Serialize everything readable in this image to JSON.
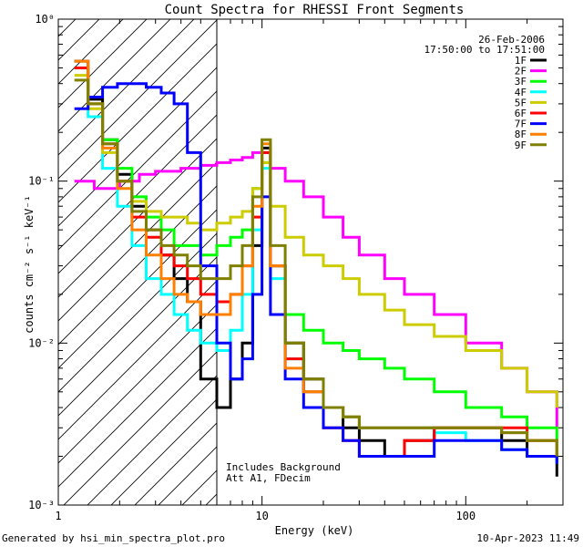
{
  "chart_data": {
    "type": "line",
    "title": "Count Spectra for RHESSI Front Segments",
    "xlabel": "Energy (keV)",
    "ylabel": "counts cm⁻² s⁻¹ keV⁻¹",
    "xscale": "log",
    "yscale": "log",
    "xlim": [
      1,
      300
    ],
    "ylim": [
      0.001,
      1
    ],
    "x_ticks": [
      {
        "value": 1,
        "label": "1"
      },
      {
        "value": 10,
        "label": "10"
      },
      {
        "value": 100,
        "label": "100"
      }
    ],
    "y_ticks": [
      {
        "value": 1,
        "label": "10⁰"
      },
      {
        "value": 0.1,
        "label": "10⁻¹"
      },
      {
        "value": 0.01,
        "label": "10⁻²"
      },
      {
        "value": 0.001,
        "label": "10⁻³"
      }
    ],
    "date": "26-Feb-2006",
    "time_range": "17:50:00 to 17:51:00",
    "hatched_region_end_kev": 6,
    "annotation_lines": [
      "Includes Background",
      "Att A1, FDecim"
    ],
    "legend_position": "top-right",
    "series": [
      {
        "name": "1F",
        "color": "#000000",
        "x": [
          1.2,
          1.4,
          1.65,
          1.95,
          2.3,
          2.7,
          3.2,
          3.7,
          4.3,
          5.0,
          6.0,
          7.0,
          8.0,
          9.0,
          10.0,
          11.0,
          13.0,
          16.0,
          20.0,
          25.0,
          30.0,
          40.0,
          50.0,
          70.0,
          100.0,
          150.0,
          200.0,
          280.0
        ],
        "values": [
          0.55,
          0.32,
          0.18,
          0.11,
          0.07,
          0.05,
          0.035,
          0.025,
          0.018,
          0.006,
          0.004,
          0.006,
          0.01,
          0.04,
          0.16,
          0.03,
          0.01,
          0.006,
          0.004,
          0.003,
          0.0025,
          0.002,
          0.0025,
          0.003,
          0.003,
          0.0025,
          0.002,
          0.0015
        ]
      },
      {
        "name": "2F",
        "color": "#ff00ff",
        "x": [
          1.2,
          1.5,
          2.0,
          2.5,
          3.0,
          4.0,
          5.0,
          6.0,
          7.0,
          8.0,
          9.0,
          10.0,
          11.0,
          13.0,
          16.0,
          20.0,
          25.0,
          30.0,
          40.0,
          50.0,
          70.0,
          100.0,
          150.0,
          200.0,
          280.0
        ],
        "values": [
          0.1,
          0.09,
          0.1,
          0.11,
          0.115,
          0.12,
          0.125,
          0.13,
          0.135,
          0.14,
          0.15,
          0.15,
          0.12,
          0.1,
          0.08,
          0.06,
          0.045,
          0.035,
          0.025,
          0.02,
          0.015,
          0.01,
          0.007,
          0.005,
          0.003
        ]
      },
      {
        "name": "3F",
        "color": "#00ff00",
        "x": [
          1.2,
          1.4,
          1.65,
          1.95,
          2.3,
          2.7,
          3.2,
          3.7,
          4.3,
          5.0,
          6.0,
          7.0,
          8.0,
          9.0,
          10.0,
          11.0,
          13.0,
          16.0,
          20.0,
          25.0,
          30.0,
          40.0,
          50.0,
          70.0,
          100.0,
          150.0,
          200.0,
          280.0
        ],
        "values": [
          0.5,
          0.3,
          0.18,
          0.12,
          0.08,
          0.06,
          0.05,
          0.04,
          0.04,
          0.035,
          0.04,
          0.045,
          0.05,
          0.09,
          0.13,
          0.03,
          0.015,
          0.012,
          0.01,
          0.009,
          0.008,
          0.007,
          0.006,
          0.005,
          0.004,
          0.0035,
          0.003,
          0.0025
        ]
      },
      {
        "name": "4F",
        "color": "#00ffff",
        "x": [
          1.2,
          1.4,
          1.65,
          1.95,
          2.3,
          2.7,
          3.2,
          3.7,
          4.3,
          5.0,
          6.0,
          7.0,
          8.0,
          9.0,
          10.0,
          11.0,
          13.0,
          16.0,
          20.0,
          25.0,
          30.0,
          40.0,
          50.0,
          70.0,
          100.0,
          150.0,
          200.0,
          280.0
        ],
        "values": [
          0.5,
          0.25,
          0.12,
          0.07,
          0.04,
          0.025,
          0.02,
          0.015,
          0.012,
          0.01,
          0.009,
          0.012,
          0.02,
          0.05,
          0.12,
          0.025,
          0.008,
          0.005,
          0.004,
          0.0035,
          0.003,
          0.003,
          0.003,
          0.0028,
          0.0025,
          0.0022,
          0.002,
          0.0018
        ]
      },
      {
        "name": "5F",
        "color": "#cccc00",
        "x": [
          1.2,
          1.4,
          1.65,
          1.95,
          2.3,
          2.7,
          3.2,
          3.7,
          4.3,
          5.0,
          6.0,
          7.0,
          8.0,
          9.0,
          10.0,
          11.0,
          13.0,
          16.0,
          20.0,
          25.0,
          30.0,
          40.0,
          50.0,
          70.0,
          100.0,
          150.0,
          200.0,
          280.0
        ],
        "values": [
          0.45,
          0.28,
          0.15,
          0.1,
          0.075,
          0.065,
          0.06,
          0.06,
          0.055,
          0.05,
          0.055,
          0.06,
          0.065,
          0.09,
          0.13,
          0.07,
          0.045,
          0.035,
          0.03,
          0.025,
          0.02,
          0.016,
          0.013,
          0.011,
          0.009,
          0.007,
          0.005,
          0.004
        ]
      },
      {
        "name": "6F",
        "color": "#ff0000",
        "x": [
          1.2,
          1.4,
          1.65,
          1.95,
          2.3,
          2.7,
          3.2,
          3.7,
          4.3,
          5.0,
          6.0,
          7.0,
          8.0,
          9.0,
          10.0,
          11.0,
          13.0,
          16.0,
          20.0,
          25.0,
          30.0,
          40.0,
          50.0,
          70.0,
          100.0,
          150.0,
          200.0,
          280.0
        ],
        "values": [
          0.5,
          0.3,
          0.17,
          0.1,
          0.06,
          0.045,
          0.035,
          0.03,
          0.025,
          0.02,
          0.018,
          0.02,
          0.03,
          0.06,
          0.15,
          0.03,
          0.008,
          0.005,
          0.003,
          0.0025,
          0.002,
          0.002,
          0.0025,
          0.003,
          0.003,
          0.003,
          0.0025,
          0.002
        ]
      },
      {
        "name": "7F",
        "color": "#0000ff",
        "x": [
          1.2,
          1.4,
          1.65,
          1.95,
          2.3,
          2.7,
          3.2,
          3.7,
          4.3,
          5.0,
          6.0,
          7.0,
          8.0,
          9.0,
          10.0,
          11.0,
          13.0,
          16.0,
          20.0,
          25.0,
          30.0,
          40.0,
          50.0,
          70.0,
          100.0,
          150.0,
          200.0,
          280.0
        ],
        "values": [
          0.28,
          0.33,
          0.38,
          0.4,
          0.4,
          0.38,
          0.35,
          0.3,
          0.15,
          0.03,
          0.01,
          0.006,
          0.008,
          0.02,
          0.08,
          0.015,
          0.006,
          0.004,
          0.003,
          0.0025,
          0.002,
          0.002,
          0.002,
          0.0025,
          0.0025,
          0.0022,
          0.002,
          0.0018
        ]
      },
      {
        "name": "8F",
        "color": "#ff8000",
        "x": [
          1.2,
          1.4,
          1.65,
          1.95,
          2.3,
          2.7,
          3.2,
          3.7,
          4.3,
          5.0,
          6.0,
          7.0,
          8.0,
          9.0,
          10.0,
          11.0,
          13.0,
          16.0,
          20.0,
          25.0,
          30.0,
          40.0,
          50.0,
          70.0,
          100.0,
          150.0,
          200.0,
          280.0
        ],
        "values": [
          0.55,
          0.3,
          0.16,
          0.09,
          0.05,
          0.035,
          0.025,
          0.02,
          0.018,
          0.015,
          0.015,
          0.02,
          0.03,
          0.07,
          0.17,
          0.03,
          0.007,
          0.005,
          0.004,
          0.0035,
          0.003,
          0.003,
          0.003,
          0.003,
          0.003,
          0.0028,
          0.0025,
          0.002
        ]
      },
      {
        "name": "9F",
        "color": "#808000",
        "x": [
          1.2,
          1.4,
          1.65,
          1.95,
          2.3,
          2.7,
          3.2,
          3.7,
          4.3,
          5.0,
          6.0,
          7.0,
          8.0,
          9.0,
          10.0,
          11.0,
          13.0,
          16.0,
          20.0,
          25.0,
          30.0,
          40.0,
          50.0,
          70.0,
          100.0,
          150.0,
          200.0,
          280.0
        ],
        "values": [
          0.42,
          0.3,
          0.17,
          0.1,
          0.065,
          0.05,
          0.04,
          0.035,
          0.03,
          0.025,
          0.025,
          0.03,
          0.04,
          0.08,
          0.18,
          0.04,
          0.01,
          0.006,
          0.004,
          0.0035,
          0.003,
          0.003,
          0.003,
          0.003,
          0.003,
          0.0028,
          0.0025,
          0.002
        ]
      }
    ]
  },
  "footer": {
    "generated_by": "Generated by hsi_min_spectra_plot.pro",
    "timestamp": "10-Apr-2023 11:49"
  }
}
